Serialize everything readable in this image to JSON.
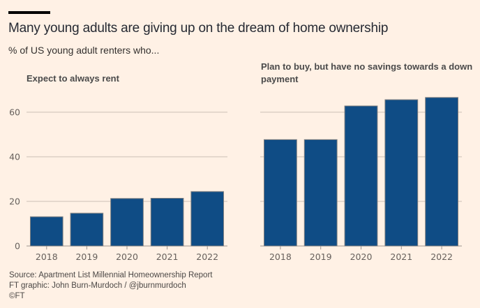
{
  "header": {
    "title": "Many young adults are giving up on the dream of home ownership",
    "subtitle": "% of US young adult renters who..."
  },
  "footer": {
    "source": "Source: Apartment List Millennial Homeownership Report",
    "credit": "FT graphic: John Burn-Murdoch / @jburnmurdoch",
    "copyright": "©FT"
  },
  "colors": {
    "bar": "#0f4c85",
    "bar_edge": "#7f7f7f",
    "grid": "#cbbfb5",
    "background": "#fff1e5"
  },
  "chart_data": [
    {
      "type": "bar",
      "title": "Expect to always rent",
      "categories": [
        "2018",
        "2019",
        "2020",
        "2021",
        "2022"
      ],
      "values": [
        13.1,
        14.7,
        21.3,
        21.4,
        24.4
      ],
      "xlabel": "",
      "ylabel": "",
      "ylim": [
        0,
        60
      ],
      "yticks": [
        0,
        20,
        40,
        60
      ],
      "ytick_labels": [
        "0",
        "20",
        "40",
        "60"
      ],
      "grid": true,
      "yaxis_labels_side": "left"
    },
    {
      "type": "bar",
      "title": "Plan to buy, but have no savings towards a down payment",
      "categories": [
        "2018",
        "2019",
        "2020",
        "2021",
        "2022"
      ],
      "values": [
        47.7,
        47.7,
        62.8,
        65.6,
        66.6
      ],
      "xlabel": "",
      "ylabel": "",
      "ylim": [
        0,
        60
      ],
      "yticks": [
        0,
        20,
        40,
        60
      ],
      "ytick_labels": [],
      "grid": true,
      "shared_y_with": "Expect to always rent"
    }
  ]
}
